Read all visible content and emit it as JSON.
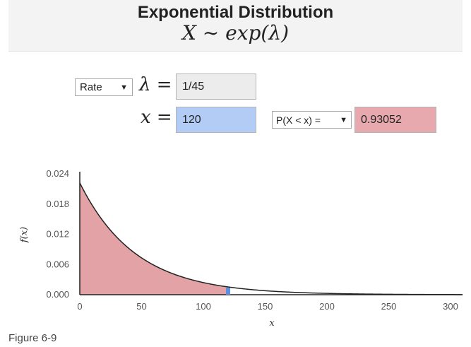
{
  "header": {
    "title": "Exponential Distribution",
    "formula": "X ∼ exp(λ)"
  },
  "controls": {
    "param_select": {
      "selected": "Rate",
      "arrow": "▼"
    },
    "lambda_symbol": "λ =",
    "lambda_value": "1/45",
    "x_symbol": "x =",
    "x_value": "120",
    "prob_select": {
      "selected": "P(X < x) =",
      "arrow": "▼"
    },
    "prob_result": "0.93052"
  },
  "chart_data": {
    "type": "area",
    "title": "",
    "xlabel": "x",
    "ylabel": "f(x)",
    "rate": 0.022222,
    "x_cutoff": 120,
    "xlim": [
      0,
      310
    ],
    "ylim": [
      0,
      0.024
    ],
    "x_ticks": [
      "0",
      "50",
      "100",
      "150",
      "200",
      "250",
      "300"
    ],
    "y_ticks": [
      "0.000",
      "0.006",
      "0.012",
      "0.018",
      "0.024"
    ],
    "shaded_region": "x < 120",
    "colors": {
      "fill": "#e3a3a6",
      "curve": "#222222",
      "marker": "#5b8fe0",
      "x_field": "#b3ccf5",
      "result_field": "#e7a9ad"
    }
  },
  "caption": "Figure 6-9"
}
